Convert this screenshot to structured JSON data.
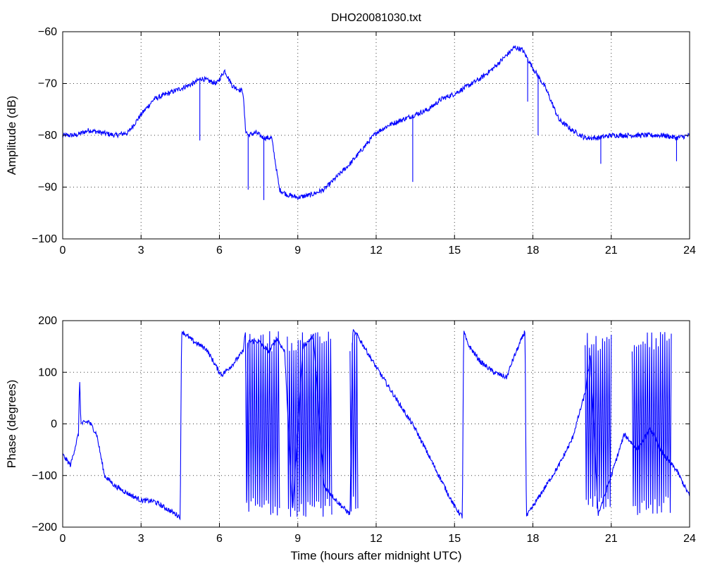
{
  "figure_title": "DHO20081030.txt",
  "chart_data": [
    {
      "type": "line",
      "title": "DHO20081030.txt",
      "xlabel": "",
      "ylabel": "Amplitude (dB)",
      "xlim": [
        0,
        24
      ],
      "ylim": [
        -100,
        -60
      ],
      "xticks": [
        0,
        3,
        6,
        9,
        12,
        15,
        18,
        21,
        24
      ],
      "yticks": [
        -100,
        -90,
        -80,
        -70,
        -60
      ],
      "grid": true,
      "series_color": "#0000ff",
      "x": [
        0,
        0.5,
        1.0,
        1.5,
        2.0,
        2.5,
        3.0,
        3.5,
        4.0,
        4.5,
        5.0,
        5.3,
        5.6,
        5.9,
        6.2,
        6.5,
        6.9,
        7.0,
        7.1,
        7.4,
        7.7,
        8.0,
        8.3,
        8.6,
        9.0,
        9.5,
        10.0,
        10.5,
        11.0,
        11.5,
        12.0,
        12.5,
        13.0,
        13.5,
        14.0,
        14.5,
        15.0,
        15.5,
        16.0,
        16.5,
        17.0,
        17.3,
        17.6,
        18.0,
        18.5,
        19.0,
        19.5,
        20.0,
        20.5,
        21.0,
        21.5,
        22.0,
        22.5,
        23.0,
        23.5,
        24.0
      ],
      "values": [
        -80,
        -80,
        -79,
        -79.5,
        -80,
        -79.5,
        -76,
        -73,
        -72,
        -71,
        -70,
        -69,
        -69.5,
        -70,
        -67.5,
        -70.5,
        -71.5,
        -79,
        -80,
        -79.5,
        -80.5,
        -80.5,
        -90.5,
        -91.5,
        -92,
        -91.5,
        -90.5,
        -88,
        -85.5,
        -82.5,
        -79.5,
        -78,
        -77,
        -76,
        -75,
        -73,
        -72,
        -70.5,
        -69,
        -67,
        -64.5,
        -63,
        -63.5,
        -67,
        -71,
        -77,
        -79,
        -80.5,
        -80.5,
        -80,
        -80,
        -80,
        -80,
        -80,
        -80.5,
        -80
      ],
      "spikes": [
        {
          "x": 5.25,
          "to": -81
        },
        {
          "x": 7.1,
          "to": -90.5
        },
        {
          "x": 7.7,
          "to": -92.5
        },
        {
          "x": 13.4,
          "to": -89
        },
        {
          "x": 17.8,
          "to": -73.5
        },
        {
          "x": 18.2,
          "to": -80
        },
        {
          "x": 20.6,
          "to": -85.5
        },
        {
          "x": 23.5,
          "to": -85
        }
      ]
    },
    {
      "type": "line",
      "title": "",
      "xlabel": "Time (hours after midnight UTC)",
      "ylabel": "Phase (degrees)",
      "xlim": [
        0,
        24
      ],
      "ylim": [
        -200,
        200
      ],
      "xticks": [
        0,
        3,
        6,
        9,
        12,
        15,
        18,
        21,
        24
      ],
      "yticks": [
        -200,
        -100,
        0,
        100,
        200
      ],
      "grid": true,
      "series_color": "#0000ff",
      "x": [
        0,
        0.3,
        0.6,
        0.65,
        0.7,
        1.0,
        1.3,
        1.45,
        1.6,
        2.0,
        2.5,
        3.0,
        3.5,
        4.0,
        4.5,
        4.55,
        5.0,
        5.5,
        6.0,
        6.1,
        6.5,
        6.9,
        7.0,
        7.05,
        7.1,
        7.5,
        7.9,
        8.2,
        8.5,
        8.8,
        9.2,
        9.6,
        10.0,
        10.5,
        11.0,
        11.1,
        11.3,
        12.0,
        13.0,
        13.5,
        14.0,
        14.5,
        15.0,
        15.3,
        15.35,
        15.5,
        16.0,
        16.5,
        17.0,
        17.2,
        17.7,
        17.75,
        18.0,
        18.5,
        19.0,
        19.5,
        20.0,
        20.2,
        20.5,
        21.0,
        21.5,
        22.0,
        22.5,
        23.0,
        23.5,
        24.0
      ],
      "values": [
        -60,
        -80,
        -20,
        85,
        0,
        5,
        -20,
        -60,
        -100,
        -120,
        -135,
        -148,
        -150,
        -165,
        -180,
        180,
        160,
        145,
        100,
        95,
        115,
        140,
        180,
        -180,
        160,
        160,
        140,
        165,
        140,
        -170,
        150,
        170,
        -120,
        -150,
        -175,
        180,
        170,
        110,
        30,
        -10,
        -60,
        -110,
        -160,
        -180,
        180,
        155,
        120,
        100,
        90,
        120,
        180,
        -180,
        -160,
        -120,
        -80,
        -30,
        60,
        130,
        -175,
        -100,
        -20,
        -50,
        -10,
        -60,
        -90,
        -140
      ],
      "switching_bursts": [
        {
          "from": 7.0,
          "to": 8.3,
          "band": [
            -180,
            180
          ]
        },
        {
          "from": 8.6,
          "to": 10.3,
          "band": [
            -180,
            180
          ]
        },
        {
          "from": 11.0,
          "to": 11.3,
          "band": [
            -180,
            180
          ]
        },
        {
          "from": 20.0,
          "to": 21.0,
          "band": [
            -180,
            180
          ]
        },
        {
          "from": 21.8,
          "to": 23.3,
          "band": [
            -180,
            180
          ]
        }
      ]
    }
  ]
}
